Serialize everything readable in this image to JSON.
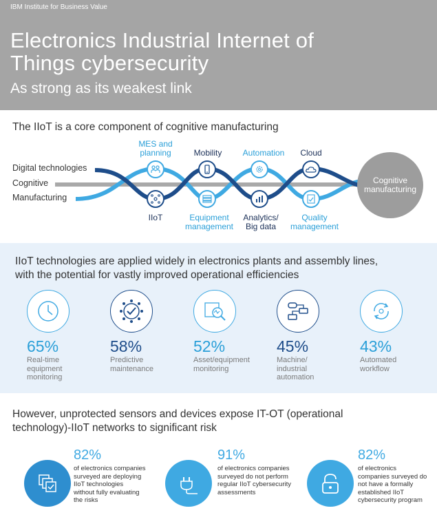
{
  "header": {
    "brand": "IBM Institute for Business Value",
    "title_line1": "Electronics Industrial Internet of",
    "title_line2": "Things cybersecurity",
    "subtitle": "As strong as its weakest link"
  },
  "section1": {
    "heading": "The IIoT is a core component of cognitive manufacturing",
    "rows": {
      "digital": "Digital technologies",
      "cognitive": "Cognitive",
      "manufacturing": "Manufacturing"
    },
    "top_nodes": [
      {
        "line1": "MES and",
        "line2": "planning",
        "icon": "people-icon"
      },
      {
        "line1": "Mobility",
        "line2": "",
        "icon": "mobile-icon"
      },
      {
        "line1": "Automation",
        "line2": "",
        "icon": "gear-icon"
      },
      {
        "line1": "Cloud",
        "line2": "",
        "icon": "cloud-icon"
      }
    ],
    "bottom_nodes": [
      {
        "line1": "IIoT",
        "line2": "",
        "icon": "network-icon"
      },
      {
        "line1": "Equipment",
        "line2": "management",
        "icon": "server-icon"
      },
      {
        "line1": "Analytics/",
        "line2": "Big data",
        "icon": "bar-chart-icon"
      },
      {
        "line1": "Quality",
        "line2": "management",
        "icon": "checklist-icon"
      }
    ],
    "cognitive_circle": {
      "line1": "Cognitive",
      "line2": "manufacturing"
    }
  },
  "section2": {
    "heading_line1": "IIoT technologies are applied widely in electronics plants and assembly lines,",
    "heading_line2": "with the potential for vastly improved operational efficiencies",
    "stats": [
      {
        "pct": "65%",
        "line1": "Real-time",
        "line2": "equipment",
        "line3": "monitoring",
        "icon": "clock-icon"
      },
      {
        "pct": "58%",
        "line1": "Predictive",
        "line2": "maintenance",
        "line3": "",
        "icon": "check-network-icon"
      },
      {
        "pct": "52%",
        "line1": "Asset/equipment",
        "line2": "monitoring",
        "line3": "",
        "icon": "magnifier-chart-icon"
      },
      {
        "pct": "45%",
        "line1": "Machine/",
        "line2": "industrial",
        "line3": "automation",
        "icon": "flow-icon"
      },
      {
        "pct": "43%",
        "line1": "Automated",
        "line2": "workflow",
        "line3": "",
        "icon": "cycle-icon"
      }
    ]
  },
  "section3": {
    "heading_line1": "However, unprotected sensors and devices expose IT-OT (operational",
    "heading_line2": "technology)-IIoT networks to significant risk",
    "risks": [
      {
        "pct": "82%",
        "line1": "of electronics companies",
        "line2": "surveyed are deploying",
        "line3": "IIoT technologies",
        "line4": "without fully evaluating",
        "line5": "the risks",
        "icon": "stacked-check-icon"
      },
      {
        "pct": "91%",
        "line1": "of electronics companies",
        "line2": "surveyed do not perform",
        "line3": "regular IIoT cybersecurity",
        "line4": "assessments",
        "line5": "",
        "icon": "plug-icon"
      },
      {
        "pct": "82%",
        "line1": "of electronics",
        "line2": "companies surveyed do",
        "line3": "not have a formally",
        "line4": "established IIoT",
        "line5": "cybersecurity program",
        "icon": "lock-icon"
      }
    ]
  },
  "colors": {
    "header_bg": "#a5a5a5",
    "light_blue": "#3fa9e2",
    "dark_blue": "#1e4d8a",
    "section_bg": "#e8f1fa"
  }
}
